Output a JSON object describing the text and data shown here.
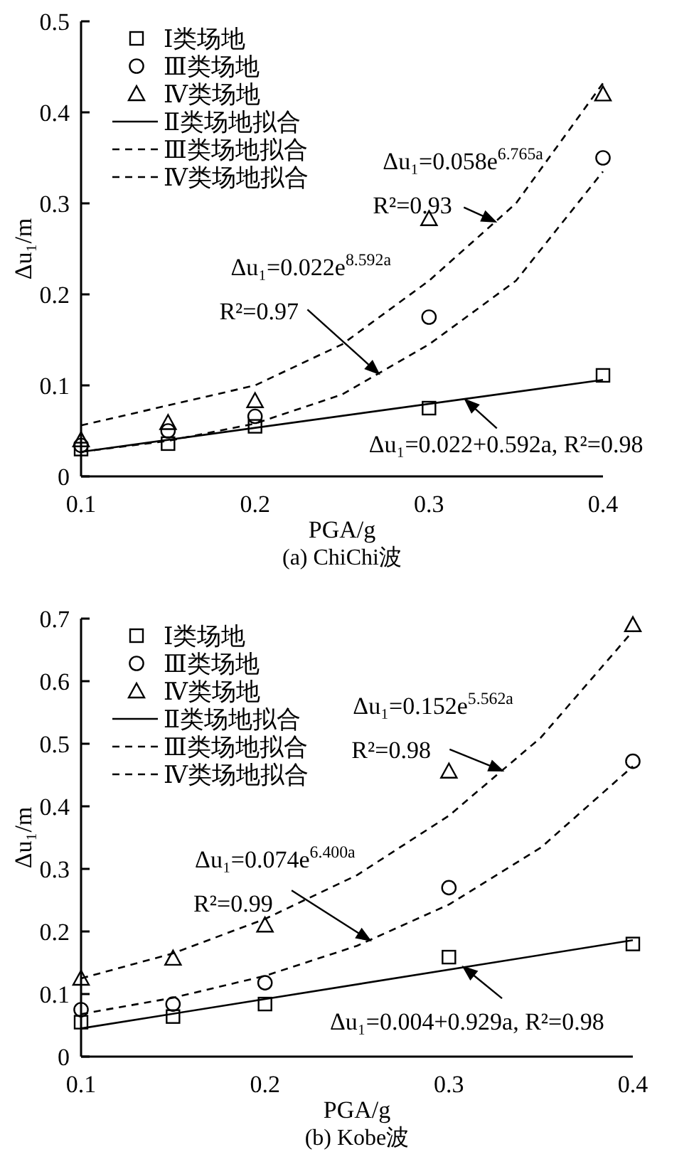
{
  "chart_data": [
    {
      "type": "scatter",
      "title": "(a) ChiChi波",
      "xlabel": "PGA/g",
      "ylabel": "Δu₁/m",
      "xlim": [
        0.1,
        0.4
      ],
      "ylim": [
        0,
        0.5
      ],
      "xticks": [
        0.1,
        0.2,
        0.3,
        0.4
      ],
      "yticks": [
        0,
        0.1,
        0.2,
        0.3,
        0.4,
        0.5
      ],
      "legend": "top left",
      "x": [
        0.1,
        0.15,
        0.2,
        0.3,
        0.4
      ],
      "series": [
        {
          "name": "Ⅰ类场地",
          "type": "scatter",
          "marker": "square",
          "color": "#000000",
          "values": [
            0.03,
            0.036,
            0.055,
            0.075,
            0.111
          ]
        },
        {
          "name": "Ⅲ类场地",
          "type": "scatter",
          "marker": "circle",
          "color": "#000000",
          "values": [
            0.034,
            0.05,
            0.066,
            0.175,
            0.35
          ]
        },
        {
          "name": "Ⅳ类场地",
          "type": "scatter",
          "marker": "triangle",
          "color": "#000000",
          "values": [
            0.04,
            0.059,
            0.083,
            0.283,
            0.42
          ]
        },
        {
          "name": "Ⅱ类场地拟合",
          "type": "line",
          "line_style": "solid",
          "color": "#000000",
          "x": [
            0.1,
            0.4
          ],
          "values": [
            0.027,
            0.106
          ]
        },
        {
          "name": "Ⅲ类场地拟合",
          "type": "line",
          "line_style": "dashed",
          "color": "#000000",
          "x": [
            0.1,
            0.15,
            0.2,
            0.25,
            0.3,
            0.35,
            0.4
          ],
          "values": [
            0.027,
            0.039,
            0.058,
            0.09,
            0.145,
            0.215,
            0.335
          ]
        },
        {
          "name": "Ⅳ类场地拟合",
          "type": "line",
          "line_style": "dashed",
          "color": "#000000",
          "x": [
            0.1,
            0.15,
            0.2,
            0.25,
            0.3,
            0.35,
            0.4
          ],
          "values": [
            0.056,
            0.078,
            0.1,
            0.145,
            0.215,
            0.3,
            0.432
          ]
        }
      ],
      "annotations": [
        "Δu₁=0.058e$^{6.765a}$",
        {
          "text": "R²=0.93",
          "x": 0.338,
          "y": 0.28
        },
        "Δu₁=0.022e$^{8.592a}$",
        {
          "text": "R²=0.97",
          "x": 0.271,
          "y": 0.113
        },
        {
          "text": "Δu₁=0.022+0.592a, R²=0.98",
          "x": 0.321,
          "y": 0.084
        }
      ]
    },
    {
      "type": "scatter",
      "title": "(b) Kobe波",
      "xlabel": "PGA/g",
      "ylabel": "Δu₁/m",
      "xlim": [
        0.1,
        0.4
      ],
      "ylim": [
        0,
        0.7
      ],
      "xticks": [
        0.1,
        0.2,
        0.3,
        0.4
      ],
      "yticks": [
        0,
        0.1,
        0.2,
        0.3,
        0.4,
        0.5,
        0.6,
        0.7
      ],
      "legend": "top left",
      "x": [
        0.1,
        0.15,
        0.2,
        0.3,
        0.4
      ],
      "series": [
        {
          "name": "Ⅰ类场地",
          "type": "scatter",
          "marker": "square",
          "color": "#000000",
          "values": [
            0.055,
            0.064,
            0.084,
            0.159,
            0.18
          ]
        },
        {
          "name": "Ⅲ类场地",
          "type": "scatter",
          "marker": "circle",
          "color": "#000000",
          "values": [
            0.075,
            0.084,
            0.118,
            0.27,
            0.472
          ]
        },
        {
          "name": "Ⅳ类场地",
          "type": "scatter",
          "marker": "triangle",
          "color": "#000000",
          "values": [
            0.125,
            0.157,
            0.21,
            0.456,
            0.69
          ]
        },
        {
          "name": "Ⅱ类场地拟合",
          "type": "line",
          "line_style": "solid",
          "color": "#000000",
          "x": [
            0.1,
            0.4
          ],
          "values": [
            0.045,
            0.186
          ]
        },
        {
          "name": "Ⅲ类场地拟合",
          "type": "line",
          "line_style": "dashed",
          "color": "#000000",
          "x": [
            0.1,
            0.15,
            0.2,
            0.25,
            0.3,
            0.35,
            0.4
          ],
          "values": [
            0.068,
            0.094,
            0.129,
            0.177,
            0.243,
            0.334,
            0.464
          ]
        },
        {
          "name": "Ⅳ类场地拟合",
          "type": "line",
          "line_style": "dashed",
          "color": "#000000",
          "x": [
            0.1,
            0.15,
            0.2,
            0.25,
            0.3,
            0.35,
            0.4
          ],
          "values": [
            0.125,
            0.165,
            0.22,
            0.29,
            0.385,
            0.51,
            0.68
          ]
        }
      ],
      "annotations": [
        "Δu₁=0.152e$^{5.562a}$",
        {
          "text": "R²=0.98",
          "x": 0.329,
          "y": 0.457
        },
        "Δu₁=0.074e$^{6.400a}$",
        {
          "text": "R²=0.99",
          "x": 0.257,
          "y": 0.186
        },
        {
          "text": "Δu₁=0.004+0.929a, R²=0.98",
          "x": 0.308,
          "y": 0.143
        }
      ]
    }
  ]
}
